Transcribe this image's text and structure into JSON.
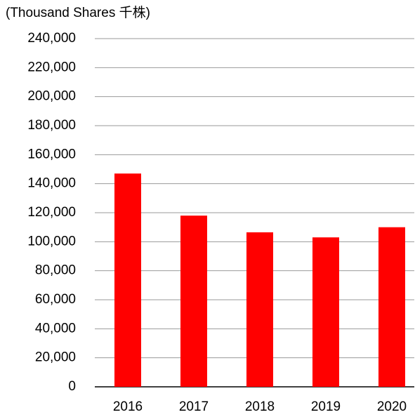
{
  "chart_data": {
    "type": "bar",
    "y_axis_label": "(Thousand Shares 千株)",
    "categories": [
      "2016",
      "2017",
      "2018",
      "2019",
      "2020"
    ],
    "values": [
      147000,
      118000,
      106500,
      103000,
      110000
    ],
    "color": "#ff0000",
    "ylim": [
      0,
      240000
    ],
    "yticks": [
      0,
      {
        "value": 20000,
        "label": "20,000"
      },
      {
        "value": 40000,
        "label": "40,000"
      },
      {
        "value": 60000,
        "label": "60,000"
      },
      {
        "value": 80000,
        "label": "80,000"
      },
      {
        "value": 100000,
        "label": "100,000"
      },
      {
        "value": 120000,
        "label": "120,000"
      },
      {
        "value": 140000,
        "label": "140,000"
      },
      {
        "value": 160000,
        "label": "160,000"
      },
      {
        "value": 180000,
        "label": "180,000"
      },
      {
        "value": 200000,
        "label": "200,000"
      },
      {
        "value": 220000,
        "label": "220,000"
      },
      {
        "value": 240000,
        "label": "240,000"
      }
    ],
    "grid": true
  }
}
